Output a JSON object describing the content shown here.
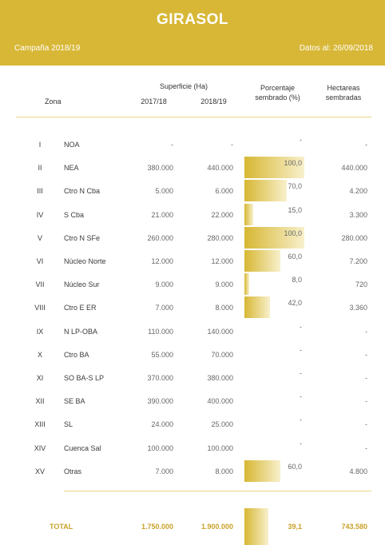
{
  "header": {
    "title": "GIRASOL",
    "campaign": "Campaña 2018/19",
    "date": "Datos al: 26/09/2018"
  },
  "columns": {
    "zona": "Zona",
    "superficie": "Superficie (Ha)",
    "y1": "2017/18",
    "y2": "2018/19",
    "pct_line1": "Porcentaje",
    "pct_line2": "sembrado (%)",
    "hec_line1": "Hectareas",
    "hec_line2": "sembradas"
  },
  "rows": [
    {
      "roman": "I",
      "zone": "NOA",
      "s17": "-",
      "s18": "-",
      "pct": "-",
      "pct_value": 0,
      "hec": "-"
    },
    {
      "roman": "II",
      "zone": "NEA",
      "s17": "380.000",
      "s18": "440.000",
      "pct": "100,0",
      "pct_value": 100,
      "hec": "440.000"
    },
    {
      "roman": "III",
      "zone": "Ctro N Cba",
      "s17": "5.000",
      "s18": "6.000",
      "pct": "70,0",
      "pct_value": 70,
      "hec": "4.200"
    },
    {
      "roman": "IV",
      "zone": "S Cba",
      "s17": "21.000",
      "s18": "22.000",
      "pct": "15,0",
      "pct_value": 15,
      "hec": "3.300"
    },
    {
      "roman": "V",
      "zone": "Ctro N SFe",
      "s17": "260.000",
      "s18": "280.000",
      "pct": "100,0",
      "pct_value": 100,
      "hec": "280.000"
    },
    {
      "roman": "VI",
      "zone": "Núcleo Norte",
      "s17": "12.000",
      "s18": "12.000",
      "pct": "60,0",
      "pct_value": 60,
      "hec": "7.200"
    },
    {
      "roman": "VII",
      "zone": "Núcleo Sur",
      "s17": "9.000",
      "s18": "9.000",
      "pct": "8,0",
      "pct_value": 8,
      "hec": "720"
    },
    {
      "roman": "VIII",
      "zone": "Ctro E ER",
      "s17": "7.000",
      "s18": "8.000",
      "pct": "42,0",
      "pct_value": 42,
      "hec": "3.360"
    },
    {
      "roman": "IX",
      "zone": "N LP-OBA",
      "s17": "110.000",
      "s18": "140.000",
      "pct": "-",
      "pct_value": 0,
      "hec": "-"
    },
    {
      "roman": "X",
      "zone": "Ctro BA",
      "s17": "55.000",
      "s18": "70.000",
      "pct": "-",
      "pct_value": 0,
      "hec": "-"
    },
    {
      "roman": "XI",
      "zone": "SO BA-S LP",
      "s17": "370.000",
      "s18": "380.000",
      "pct": "-",
      "pct_value": 0,
      "hec": "-"
    },
    {
      "roman": "XII",
      "zone": "SE BA",
      "s17": "390.000",
      "s18": "400.000",
      "pct": "-",
      "pct_value": 0,
      "hec": "-"
    },
    {
      "roman": "XIII",
      "zone": "SL",
      "s17": "24.000",
      "s18": "25.000",
      "pct": "-",
      "pct_value": 0,
      "hec": "-"
    },
    {
      "roman": "XIV",
      "zone": "Cuenca Sal",
      "s17": "100.000",
      "s18": "100.000",
      "pct": "-",
      "pct_value": 0,
      "hec": "-"
    },
    {
      "roman": "XV",
      "zone": "Otras",
      "s17": "7.000",
      "s18": "8.000",
      "pct": "60,0",
      "pct_value": 60,
      "hec": "4.800"
    }
  ],
  "total": {
    "label": "TOTAL",
    "s17": "1.750.000",
    "s18": "1.900.000",
    "pct": "39,1",
    "pct_value": 39.1,
    "hec": "743.580"
  },
  "colors": {
    "accent": "#d8b737",
    "bar_start": "#d7b733",
    "bar_end": "#f8f0cc"
  }
}
